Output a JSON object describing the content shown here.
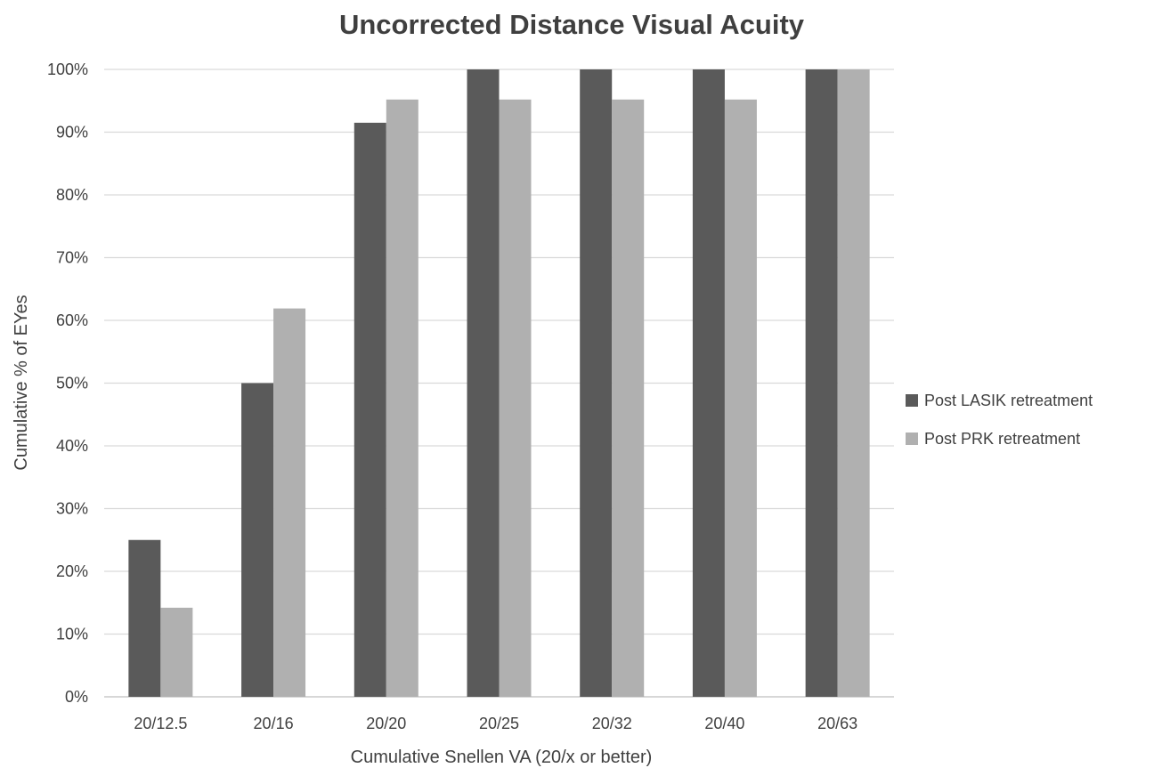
{
  "chart_data": {
    "type": "bar",
    "title": "Uncorrected Distance Visual Acuity",
    "xlabel": "Cumulative Snellen VA (20/x or better)",
    "ylabel": "Cumulative % of EYes",
    "categories": [
      "20/12.5",
      "20/16",
      "20/20",
      "20/25",
      "20/32",
      "20/40",
      "20/63"
    ],
    "series": [
      {
        "name": "Post LASIK retreatment",
        "color": "#5a5a5a",
        "values": [
          25,
          50,
          91.5,
          100,
          100,
          100,
          100
        ]
      },
      {
        "name": "Post PRK retreatment",
        "color": "#b0b0b0",
        "values": [
          14.2,
          61.9,
          95.2,
          95.2,
          95.2,
          95.2,
          100
        ]
      }
    ],
    "yticks": [
      "0%",
      "10%",
      "20%",
      "30%",
      "40%",
      "50%",
      "60%",
      "70%",
      "80%",
      "90%",
      "100%"
    ],
    "ylim": [
      0,
      100
    ],
    "grid": true,
    "legend_position": "right"
  }
}
